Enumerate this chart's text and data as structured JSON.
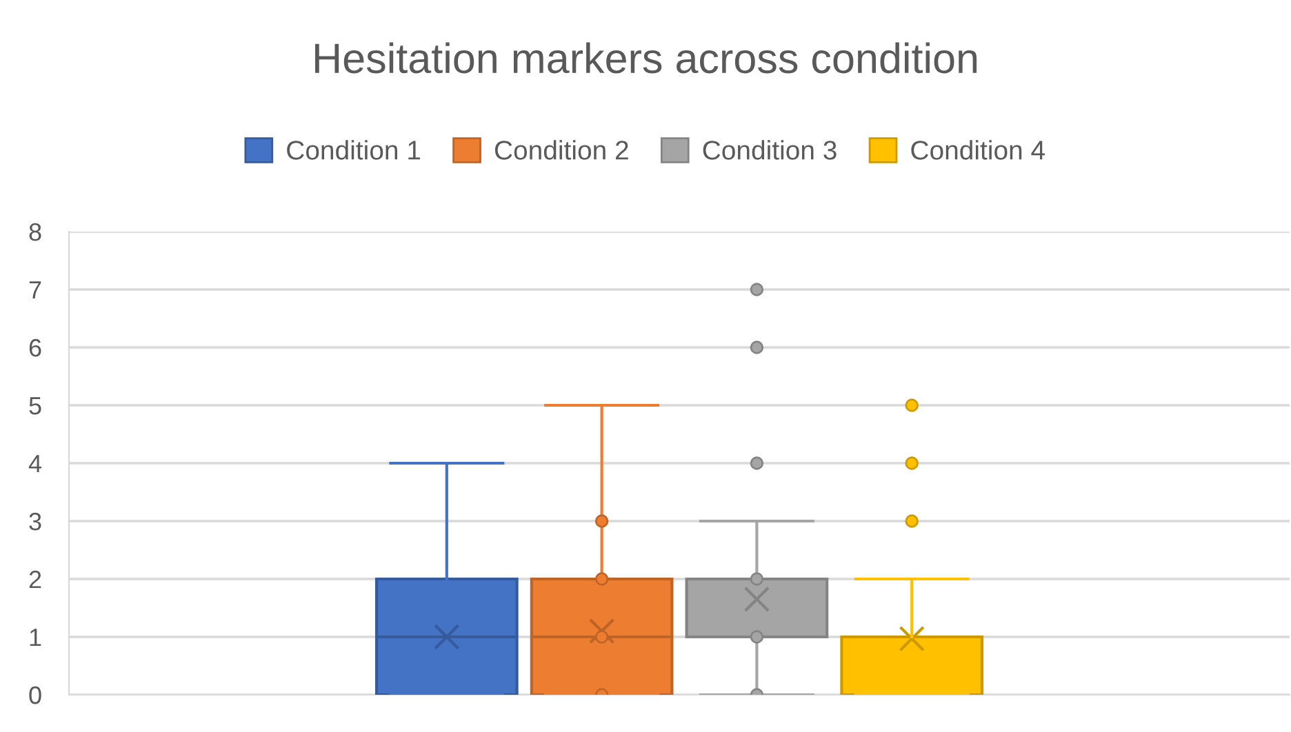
{
  "chart_data": {
    "type": "box",
    "title": "Hesitation markers across condition",
    "categories": [
      null
    ],
    "series": [
      {
        "name": "Condition 1",
        "color": "#4472c4",
        "boxes": [
          {
            "low": 0,
            "q1": 0,
            "median": 1,
            "q3": 2,
            "high": 4,
            "mean": 1.0
          }
        ]
      },
      {
        "name": "Condition 2",
        "color": "#ed7d31",
        "boxes": [
          {
            "low": 0,
            "q1": 0,
            "median": 1,
            "q3": 2,
            "high": 5,
            "mean": 1.1,
            "outliers": [
              0,
              1,
              2,
              3
            ]
          }
        ]
      },
      {
        "name": "Condition 3",
        "color": "#a5a5a5",
        "boxes": [
          {
            "low": 0,
            "q1": 1,
            "median": 1,
            "q3": 2,
            "high": 3,
            "mean": 1.65,
            "outliers": [
              0,
              1,
              2,
              4,
              6,
              7
            ]
          }
        ]
      },
      {
        "name": "Condition 4",
        "color": "#ffc000",
        "boxes": [
          {
            "low": 0,
            "q1": 0,
            "median": 0,
            "q3": 1,
            "high": 2,
            "mean": 0.97,
            "outliers": [
              3,
              4,
              5
            ]
          }
        ]
      }
    ],
    "ylim": [
      0,
      8
    ],
    "yticks": [
      0,
      1,
      2,
      3,
      4,
      5,
      6,
      7,
      8
    ],
    "grid": "y",
    "legend": "top",
    "marker": "circle"
  }
}
